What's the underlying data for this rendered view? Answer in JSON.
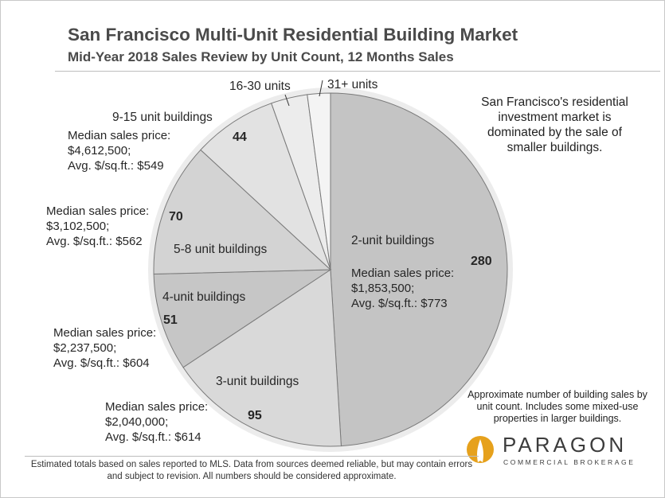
{
  "title": "San Francisco Multi-Unit Residential Building Market",
  "subtitle": "Mid-Year 2018 Sales Review by Unit Count, 12 Months Sales",
  "note": "San Francisco's residential investment market is dominated by the sale of smaller buildings.",
  "note2": "Approximate number of building sales by unit count. Includes some mixed-use properties in larger buildings.",
  "footer": "Estimated totals based on sales reported to MLS. Data from sources deemed reliable, but may contain errors and subject to revision. All numbers should be considered approximate.",
  "logo": {
    "word": "PARAGON",
    "sub": "COMMERCIAL BROKERAGE",
    "brand_color": "#e6a11c"
  },
  "chart_data": {
    "type": "pie",
    "categories": [
      "2-unit buildings",
      "3-unit buildings",
      "4-unit buildings",
      "5-8 unit buildings",
      "9-15 unit buildings",
      "16-30 units",
      "31+ units"
    ],
    "values": [
      280,
      95,
      51,
      70,
      44,
      null,
      null
    ],
    "value_labels": [
      "280",
      "95",
      "51",
      "70",
      "44",
      "",
      ""
    ],
    "median_label": "Median sales price:",
    "median_prices": [
      "$1,853,500;",
      "$2,040,000;",
      "$2,237,500;",
      "$3,102,500;",
      "$4,612,500;",
      "",
      ""
    ],
    "avg_sqft": [
      "Avg. $/sq.ft.: $773",
      "Avg. $/sq.ft.: $614",
      "Avg. $/sq.ft.: $604",
      "Avg. $/sq.ft.: $562",
      "Avg. $/sq.ft.: $549",
      "",
      ""
    ],
    "slice_colors": [
      "#c4c4c4",
      "#d9d9d9",
      "#c6c6c6",
      "#d3d3d3",
      "#e2e2e2",
      "#ececec",
      "#f4f4f4"
    ]
  }
}
